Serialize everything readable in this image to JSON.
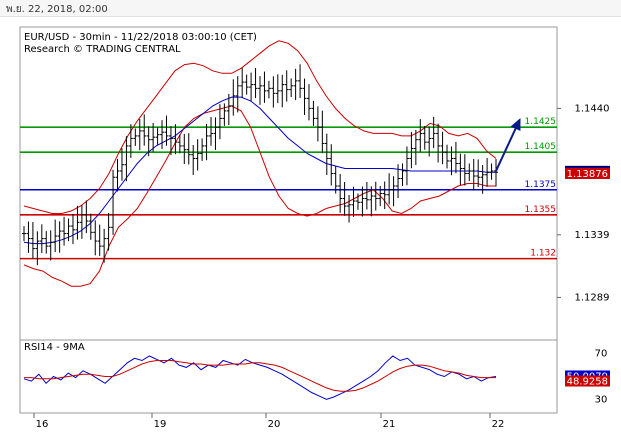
{
  "window": {
    "timestamp": "พ.ย. 22, 2018, 02:00"
  },
  "chart_data": [
    {
      "type": "line",
      "title": "EUR/USD - 30min - 11/22/2018 03:00:10 (CET)",
      "subtitle": "Research © TRADING CENTRAL",
      "x_ticks": [
        "16",
        "19",
        "20",
        "21",
        "22"
      ],
      "y_ticks": [
        "1.1440",
        "1.1339",
        "1.1289"
      ],
      "ylim": [
        1.1255,
        1.1505
      ],
      "levels": [
        {
          "label": "1.1425",
          "value": 1.1425,
          "color": "#009900"
        },
        {
          "label": "1.1405",
          "value": 1.1405,
          "color": "#009900"
        },
        {
          "label": "1.1375",
          "value": 1.1375,
          "color": "#0000cc"
        },
        {
          "label": "1.1355",
          "value": 1.1355,
          "color": "#cc0000"
        },
        {
          "label": "1.132",
          "value": 1.132,
          "color": "#cc0000"
        }
      ],
      "price_labels": [
        {
          "label": "1.13893",
          "value": 1.13893,
          "bg": "#000000",
          "fg": "#ffffff"
        },
        {
          "label": "1.13891",
          "value": 1.13886,
          "bg": "#0000cc",
          "fg": "#ffffff"
        },
        {
          "label": "1.13876",
          "value": 1.13876,
          "bg": "#cc0000",
          "fg": "#ffffff"
        }
      ],
      "series": [
        {
          "name": "price",
          "color": "#000000",
          "values": [
            1.134,
            1.1336,
            1.1328,
            1.1334,
            1.1336,
            1.133,
            1.1333,
            1.1338,
            1.1342,
            1.134,
            1.1346,
            1.1343,
            1.1349,
            1.1355,
            1.135,
            1.1341,
            1.1334,
            1.133,
            1.1336,
            1.1345,
            1.1385,
            1.139,
            1.1395,
            1.141,
            1.1416,
            1.1418,
            1.1422,
            1.1418,
            1.1415,
            1.1417,
            1.1419,
            1.1421,
            1.1418,
            1.1416,
            1.1413,
            1.141,
            1.1407,
            1.1403,
            1.14,
            1.1404,
            1.141,
            1.1418,
            1.142,
            1.1425,
            1.1432,
            1.1438,
            1.1442,
            1.145,
            1.1458,
            1.1461,
            1.1457,
            1.1459,
            1.1456,
            1.1458,
            1.1454,
            1.1456,
            1.1452,
            1.1454,
            1.1459,
            1.1455,
            1.1458,
            1.1462,
            1.1456,
            1.1448,
            1.144,
            1.1432,
            1.1425,
            1.1412,
            1.14,
            1.1388,
            1.1378,
            1.1368,
            1.1362,
            1.1363,
            1.1366,
            1.1365,
            1.1368,
            1.1367,
            1.137,
            1.1368,
            1.1372,
            1.1371,
            1.1375,
            1.1378,
            1.1384,
            1.139,
            1.14,
            1.1408,
            1.1415,
            1.142,
            1.1413,
            1.1416,
            1.142,
            1.141,
            1.1405,
            1.1398,
            1.14,
            1.1396,
            1.1392,
            1.1388,
            1.139,
            1.1386,
            1.1385,
            1.1387,
            1.1389,
            1.139,
            1.1389
          ]
        },
        {
          "name": "bb_upper",
          "color": "#cc0000",
          "values": [
            1.1362,
            1.136,
            1.1358,
            1.1356,
            1.1356,
            1.1358,
            1.1362,
            1.1368,
            1.1376,
            1.1388,
            1.1404,
            1.1418,
            1.143,
            1.144,
            1.145,
            1.146,
            1.147,
            1.1475,
            1.1476,
            1.1474,
            1.147,
            1.1468,
            1.1468,
            1.1472,
            1.1478,
            1.1484,
            1.149,
            1.1494,
            1.1492,
            1.1486,
            1.1476,
            1.1462,
            1.145,
            1.144,
            1.1432,
            1.1426,
            1.1422,
            1.142,
            1.142,
            1.142,
            1.1418,
            1.1418,
            1.1422,
            1.1428,
            1.1426,
            1.142,
            1.1418,
            1.142,
            1.1416,
            1.1406,
            1.14
          ]
        },
        {
          "name": "bb_lower",
          "color": "#cc0000",
          "values": [
            1.1315,
            1.1312,
            1.131,
            1.1305,
            1.1302,
            1.1298,
            1.1298,
            1.13,
            1.131,
            1.133,
            1.1345,
            1.1352,
            1.136,
            1.1372,
            1.1385,
            1.1398,
            1.1412,
            1.1425,
            1.1432,
            1.1436,
            1.1438,
            1.144,
            1.1442,
            1.1438,
            1.1425,
            1.1405,
            1.1385,
            1.137,
            1.136,
            1.1356,
            1.1354,
            1.1356,
            1.136,
            1.1362,
            1.1364,
            1.1368,
            1.1372,
            1.1375,
            1.1368,
            1.1358,
            1.1356,
            1.136,
            1.1366,
            1.1368,
            1.137,
            1.1374,
            1.1378,
            1.138,
            1.138,
            1.1378,
            1.1378
          ]
        },
        {
          "name": "ma",
          "color": "#0000cc",
          "values": [
            1.1333,
            1.1332,
            1.1332,
            1.1333,
            1.1335,
            1.1338,
            1.1342,
            1.1348,
            1.1356,
            1.1366,
            1.1376,
            1.1386,
            1.1396,
            1.1404,
            1.141,
            1.1414,
            1.1418,
            1.1424,
            1.143,
            1.1436,
            1.1442,
            1.1446,
            1.1449,
            1.1449,
            1.1446,
            1.144,
            1.1432,
            1.1424,
            1.1416,
            1.141,
            1.1404,
            1.14,
            1.1396,
            1.1394,
            1.1392,
            1.1392,
            1.1392,
            1.1392,
            1.1392,
            1.1392,
            1.1391,
            1.139,
            1.139,
            1.139,
            1.139,
            1.139,
            1.139,
            1.139,
            1.139,
            1.1389,
            1.1389
          ]
        }
      ]
    },
    {
      "type": "line",
      "title": "RSI14 - 9MA",
      "y_ticks": [
        "70",
        "30"
      ],
      "ylim": [
        18,
        82
      ],
      "price_labels": [
        {
          "label": "50.0079",
          "value": 50.0079,
          "bg": "#0000cc",
          "fg": "#ffffff"
        },
        {
          "label": "48.9258",
          "value": 45.6,
          "bg": "#cc0000",
          "fg": "#ffffff"
        }
      ],
      "series": [
        {
          "name": "rsi",
          "color": "#0000cc",
          "values": [
            48,
            46,
            52,
            44,
            50,
            47,
            53,
            49,
            55,
            52,
            48,
            44,
            50,
            56,
            62,
            66,
            64,
            68,
            65,
            62,
            66,
            60,
            58,
            62,
            56,
            60,
            58,
            64,
            62,
            60,
            65,
            62,
            60,
            58,
            55,
            52,
            48,
            44,
            40,
            36,
            33,
            30,
            32,
            35,
            38,
            42,
            46,
            50,
            55,
            62,
            68,
            64,
            66,
            60,
            58,
            56,
            52,
            50,
            54,
            52,
            48,
            50,
            46,
            49,
            50
          ]
        },
        {
          "name": "rsi_ma",
          "color": "#cc0000",
          "values": [
            49,
            49,
            48,
            48,
            48,
            49,
            50,
            51,
            52,
            52,
            51,
            50,
            50,
            52,
            55,
            58,
            61,
            63,
            64,
            64,
            64,
            63,
            62,
            61,
            61,
            60,
            60,
            60,
            61,
            61,
            61,
            62,
            62,
            61,
            60,
            58,
            55,
            52,
            49,
            46,
            43,
            40,
            38,
            37,
            37,
            38,
            40,
            43,
            46,
            50,
            54,
            57,
            59,
            60,
            60,
            59,
            57,
            55,
            54,
            53,
            51,
            50,
            49,
            49,
            49
          ]
        }
      ]
    }
  ]
}
